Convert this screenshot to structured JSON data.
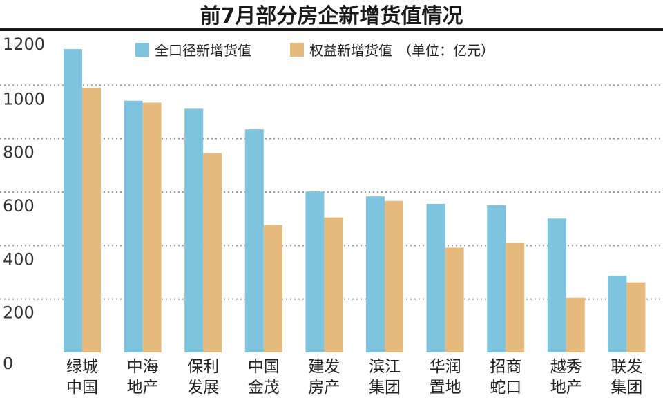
{
  "chart_data": {
    "type": "bar",
    "title": "前7月部分房企新增货值情况",
    "unit_note": "（单位：亿元）",
    "categories": [
      [
        "绿城",
        "中国"
      ],
      [
        "中海",
        "地产"
      ],
      [
        "保利",
        "发展"
      ],
      [
        "中国",
        "金茂"
      ],
      [
        "建发",
        "房产"
      ],
      [
        "滨江",
        "集团"
      ],
      [
        "华润",
        "置地"
      ],
      [
        "招商",
        "蛇口"
      ],
      [
        "越秀",
        "地产"
      ],
      [
        "联发",
        "集团"
      ]
    ],
    "series": [
      {
        "name": "全口径新增货值",
        "color": "#7fc4de",
        "values": [
          1135,
          942,
          912,
          835,
          602,
          584,
          556,
          551,
          501,
          287
        ]
      },
      {
        "name": "权益新增货值",
        "color": "#e6b97d",
        "values": [
          990,
          935,
          746,
          477,
          505,
          567,
          392,
          410,
          205,
          262
        ]
      }
    ],
    "ylim": [
      0,
      1200
    ],
    "yticks": [
      0,
      200,
      400,
      600,
      800,
      1000,
      1200
    ],
    "grid": true,
    "legend_position": "top"
  }
}
